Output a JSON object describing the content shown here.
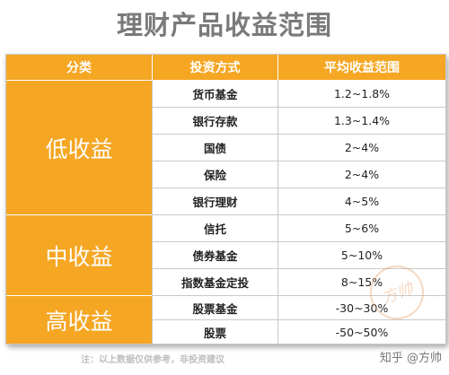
{
  "title": "理财产品收益范围",
  "header": {
    "category": "分类",
    "method": "投资方式",
    "return": "平均收益范围"
  },
  "groups": [
    {
      "label": "低收益"
    },
    {
      "label": "中收益"
    },
    {
      "label": "高收益"
    }
  ],
  "rows": [
    {
      "method": "货币基金",
      "return": "1.2~1.8%"
    },
    {
      "method": "银行存款",
      "return": "1.3~1.4%"
    },
    {
      "method": "国债",
      "return": "2~4%"
    },
    {
      "method": "保险",
      "return": "2~4%"
    },
    {
      "method": "银行理财",
      "return": "4~5%"
    },
    {
      "method": "信托",
      "return": "5~6%"
    },
    {
      "method": "债券基金",
      "return": "5~10%"
    },
    {
      "method": "指数基金定投",
      "return": "8~15%"
    },
    {
      "method": "股票基金",
      "return": "-30~30%"
    },
    {
      "method": "股票",
      "return": "-50~50%"
    }
  ],
  "footnote": "注：以上数据仅供参考，非投资建议",
  "brand": "知乎 @方帅",
  "watermark": "方帅",
  "colors": {
    "accent": "#f5a623",
    "border": "#c9c9c9",
    "title": "#7a7a7a"
  }
}
